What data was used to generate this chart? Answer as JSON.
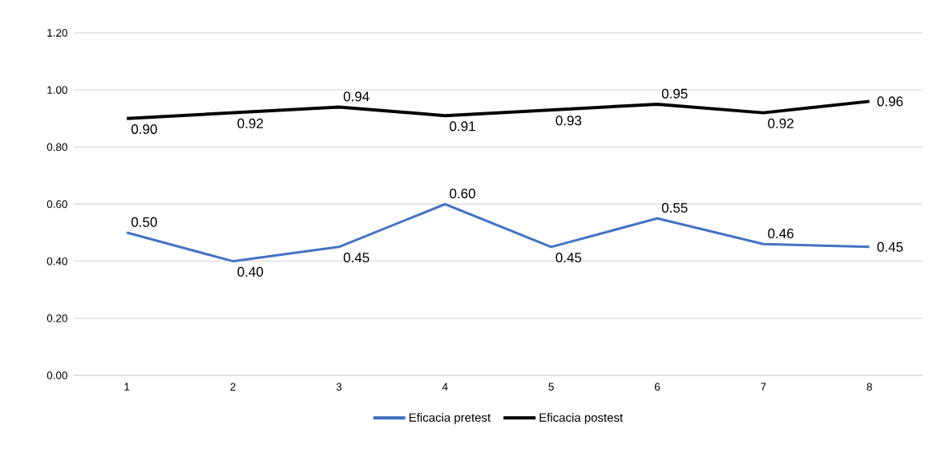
{
  "chart_data": {
    "type": "line",
    "categories": [
      "1",
      "2",
      "3",
      "4",
      "5",
      "6",
      "7",
      "8"
    ],
    "series": [
      {
        "name": "Eficacia pretest",
        "color": "#4472c4",
        "values": [
          0.5,
          0.4,
          0.45,
          0.6,
          0.45,
          0.55,
          0.46,
          0.45
        ],
        "value_labels": [
          "0.50",
          "0.40",
          "0.45",
          "0.60",
          "0.45",
          "0.55",
          "0.46",
          "0.45"
        ]
      },
      {
        "name": "Eficacia postest",
        "color": "#000000",
        "values": [
          0.9,
          0.92,
          0.94,
          0.91,
          0.93,
          0.95,
          0.92,
          0.96
        ],
        "value_labels": [
          "0.90",
          "0.92",
          "0.94",
          "0.91",
          "0.93",
          "0.95",
          "0.92",
          "0.96"
        ]
      }
    ],
    "ylim": [
      0,
      1.2
    ],
    "yticks": [
      "0.00",
      "0.20",
      "0.40",
      "0.60",
      "0.80",
      "1.00",
      "1.20"
    ],
    "grid": "y",
    "legend": "bottom",
    "marker": "none",
    "line_style": "solid"
  }
}
